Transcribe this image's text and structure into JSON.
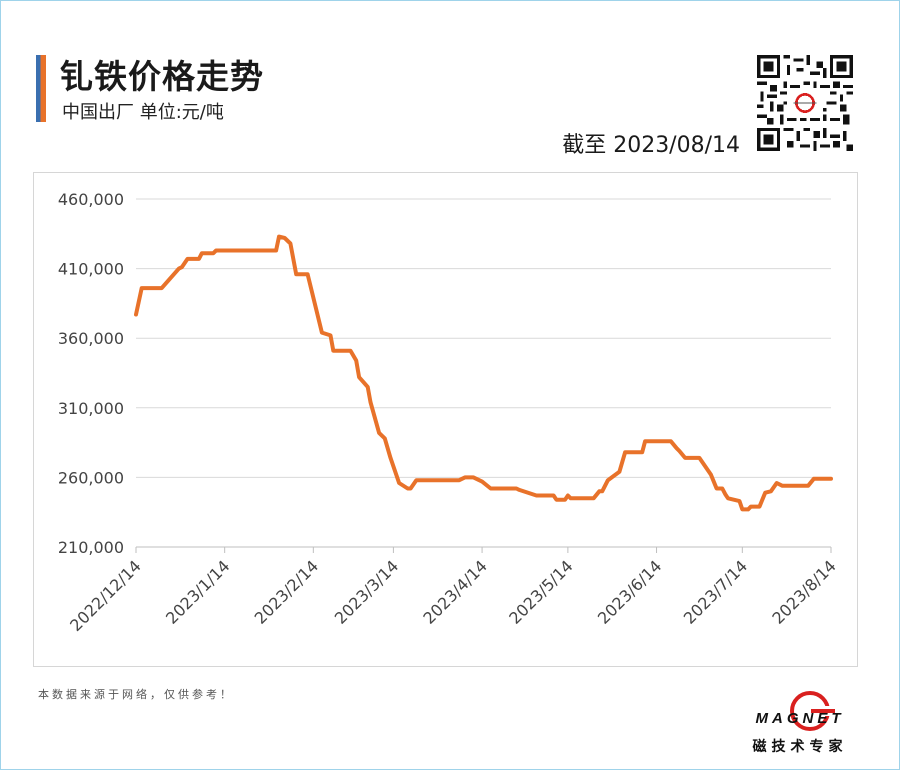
{
  "header": {
    "title": "钆铁价格走势",
    "subtitle": "中国出厂  单位:元/吨",
    "date_label": "截至 2023/08/14"
  },
  "footer": {
    "note": "本数据来源于网络，仅供参考！",
    "logo_word": "MAGNET",
    "logo_sub": "磁技术专家"
  },
  "colors": {
    "line": "#e8722a",
    "accent_blue": "#3a6fb0",
    "accent_orange": "#e8722a",
    "grid": "#d9d9d9",
    "logo_red": "#d9201f"
  },
  "chart_data": {
    "type": "line",
    "title": "钆铁价格走势",
    "xlabel": "",
    "ylabel": "",
    "ylim": [
      210000,
      460000
    ],
    "yticks": [
      210000,
      260000,
      310000,
      360000,
      410000,
      460000
    ],
    "ytick_labels": [
      "210,000",
      "260,000",
      "310,000",
      "360,000",
      "410,000",
      "460,000"
    ],
    "xlim": [
      "2022-12-14",
      "2023-08-14"
    ],
    "xticks": [
      "2022-12-14",
      "2023-01-14",
      "2023-02-14",
      "2023-03-14",
      "2023-04-14",
      "2023-05-14",
      "2023-06-14",
      "2023-07-14",
      "2023-08-14"
    ],
    "xtick_labels": [
      "2022/12/14",
      "2023/1/14",
      "2023/2/14",
      "2023/3/14",
      "2023/4/14",
      "2023/5/14",
      "2023/6/14",
      "2023/7/14",
      "2023/8/14"
    ],
    "grid": true,
    "series": [
      {
        "points": [
          [
            "2022-12-14",
            377000
          ],
          [
            "2022-12-16",
            396000
          ],
          [
            "2022-12-23",
            396000
          ],
          [
            "2022-12-26",
            403000
          ],
          [
            "2022-12-29",
            410000
          ],
          [
            "2022-12-30",
            411000
          ],
          [
            "2023-01-01",
            417000
          ],
          [
            "2023-01-05",
            417000
          ],
          [
            "2023-01-06",
            421000
          ],
          [
            "2023-01-10",
            421000
          ],
          [
            "2023-01-11",
            423000
          ],
          [
            "2023-02-01",
            423000
          ],
          [
            "2023-02-02",
            433000
          ],
          [
            "2023-02-04",
            432000
          ],
          [
            "2023-02-06",
            428000
          ],
          [
            "2023-02-08",
            406000
          ],
          [
            "2023-02-12",
            406000
          ],
          [
            "2023-02-17",
            364000
          ],
          [
            "2023-02-20",
            362000
          ],
          [
            "2023-02-21",
            351000
          ],
          [
            "2023-02-27",
            351000
          ],
          [
            "2023-03-01",
            344000
          ],
          [
            "2023-03-02",
            332000
          ],
          [
            "2023-03-05",
            325000
          ],
          [
            "2023-03-06",
            314000
          ],
          [
            "2023-03-09",
            292000
          ],
          [
            "2023-03-11",
            288000
          ],
          [
            "2023-03-13",
            274000
          ],
          [
            "2023-03-16",
            256000
          ],
          [
            "2023-03-19",
            252000
          ],
          [
            "2023-03-20",
            252000
          ],
          [
            "2023-03-22",
            258000
          ],
          [
            "2023-04-06",
            258000
          ],
          [
            "2023-04-08",
            260000
          ],
          [
            "2023-04-11",
            260000
          ],
          [
            "2023-04-13",
            258000
          ],
          [
            "2023-04-14",
            257000
          ],
          [
            "2023-04-17",
            252000
          ],
          [
            "2023-04-26",
            252000
          ],
          [
            "2023-04-27",
            251000
          ],
          [
            "2023-05-03",
            247000
          ],
          [
            "2023-05-09",
            247000
          ],
          [
            "2023-05-10",
            244000
          ],
          [
            "2023-05-13",
            244000
          ],
          [
            "2023-05-14",
            247000
          ],
          [
            "2023-05-15",
            245000
          ],
          [
            "2023-05-22",
            245000
          ],
          [
            "2023-05-23",
            245000
          ],
          [
            "2023-05-25",
            250000
          ],
          [
            "2023-05-26",
            250000
          ],
          [
            "2023-05-28",
            258000
          ],
          [
            "2023-06-01",
            264000
          ],
          [
            "2023-06-03",
            278000
          ],
          [
            "2023-06-06",
            278000
          ],
          [
            "2023-06-09",
            278000
          ],
          [
            "2023-06-10",
            286000
          ],
          [
            "2023-06-15",
            286000
          ],
          [
            "2023-06-19",
            286000
          ],
          [
            "2023-06-21",
            281000
          ],
          [
            "2023-06-22",
            279000
          ],
          [
            "2023-06-24",
            274000
          ],
          [
            "2023-06-29",
            274000
          ],
          [
            "2023-07-03",
            262000
          ],
          [
            "2023-07-05",
            252000
          ],
          [
            "2023-07-07",
            252000
          ],
          [
            "2023-07-08",
            248000
          ],
          [
            "2023-07-09",
            245000
          ],
          [
            "2023-07-13",
            243000
          ],
          [
            "2023-07-14",
            237000
          ],
          [
            "2023-07-16",
            237000
          ],
          [
            "2023-07-17",
            239000
          ],
          [
            "2023-07-20",
            239000
          ],
          [
            "2023-07-22",
            249000
          ],
          [
            "2023-07-24",
            250000
          ],
          [
            "2023-07-26",
            256000
          ],
          [
            "2023-07-28",
            254000
          ],
          [
            "2023-08-01",
            254000
          ],
          [
            "2023-08-06",
            254000
          ],
          [
            "2023-08-08",
            259000
          ],
          [
            "2023-08-14",
            259000
          ]
        ]
      }
    ]
  }
}
